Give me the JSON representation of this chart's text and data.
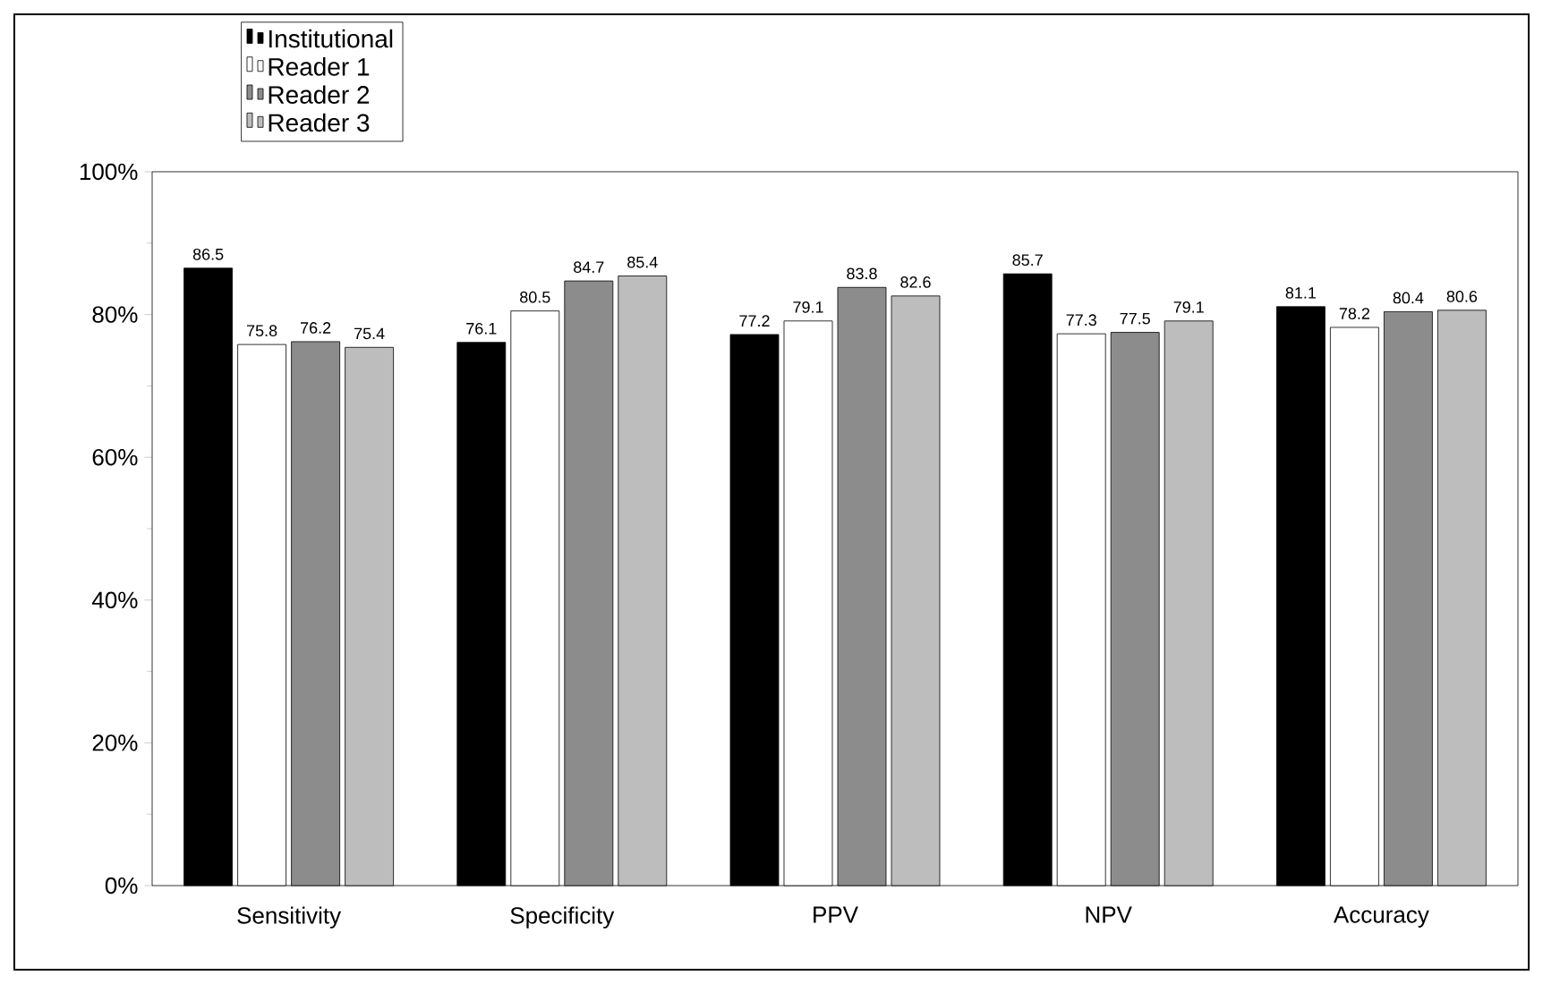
{
  "chart_data": {
    "type": "bar",
    "categories": [
      "Sensitivity",
      "Specificity",
      "PPV",
      "NPV",
      "Accuracy"
    ],
    "series": [
      {
        "name": "Institutional",
        "color": "#000000",
        "values": [
          86.5,
          76.1,
          77.2,
          85.7,
          81.1
        ]
      },
      {
        "name": "Reader 1",
        "color": "#ffffff",
        "values": [
          75.8,
          80.5,
          79.1,
          77.3,
          78.2
        ]
      },
      {
        "name": "Reader 2",
        "color": "#8c8c8c",
        "values": [
          76.2,
          84.7,
          83.8,
          77.5,
          80.4
        ]
      },
      {
        "name": "Reader 3",
        "color": "#bdbdbd",
        "values": [
          75.4,
          85.4,
          82.6,
          79.1,
          80.6
        ]
      }
    ],
    "ylim": [
      0,
      100
    ],
    "yticks": [
      {
        "value": 0,
        "label": "0%"
      },
      {
        "value": 20,
        "label": "20%"
      },
      {
        "value": 40,
        "label": "40%"
      },
      {
        "value": 60,
        "label": "60%"
      },
      {
        "value": 80,
        "label": "80%"
      },
      {
        "value": 100,
        "label": "100%"
      }
    ],
    "data_labels": true,
    "legend": "top left"
  }
}
